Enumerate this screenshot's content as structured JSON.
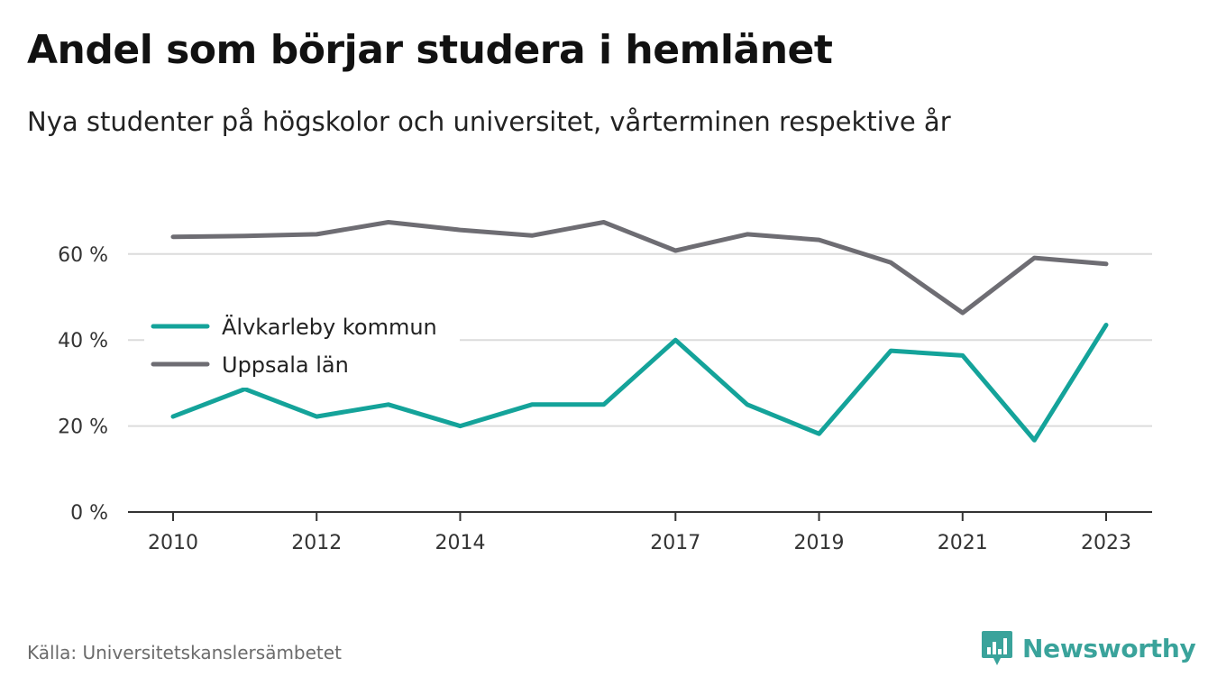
{
  "chart_data": {
    "type": "line",
    "title": "Andel som börjar studera i hemlänet",
    "subtitle": "Nya studenter på högskolor och universitet, vårterminen respektive år",
    "x": [
      2010,
      2011,
      2012,
      2013,
      2014,
      2015,
      2016,
      2017,
      2018,
      2019,
      2020,
      2021,
      2022,
      2023
    ],
    "x_ticks": [
      "2010",
      "2012",
      "2014",
      "2017",
      "2019",
      "2021",
      "2023"
    ],
    "y_ticks": [
      "0 %",
      "20 %",
      "40 %",
      "60 %"
    ],
    "ylim": [
      0,
      70
    ],
    "grid": "horizontal",
    "legend_position": "left-middle",
    "series": [
      {
        "name": "Älvkarleby kommun",
        "color": "#14a39a",
        "values": [
          22.2,
          28.6,
          22.2,
          25.0,
          20.0,
          25.0,
          25.0,
          40.0,
          25.0,
          18.2,
          37.5,
          36.4,
          16.7,
          43.5
        ]
      },
      {
        "name": "Uppsala län",
        "color": "#6e6d73",
        "values": [
          64.0,
          64.2,
          64.6,
          67.4,
          65.6,
          64.3,
          67.4,
          60.8,
          64.6,
          63.3,
          58.0,
          46.3,
          59.1,
          57.7
        ]
      }
    ]
  },
  "footer": {
    "source": "Källa: Universitetskanslersämbetet",
    "brand": "Newsworthy",
    "brand_color": "#3aa39b",
    "brand_icon": "bar-chart-badge-icon"
  }
}
